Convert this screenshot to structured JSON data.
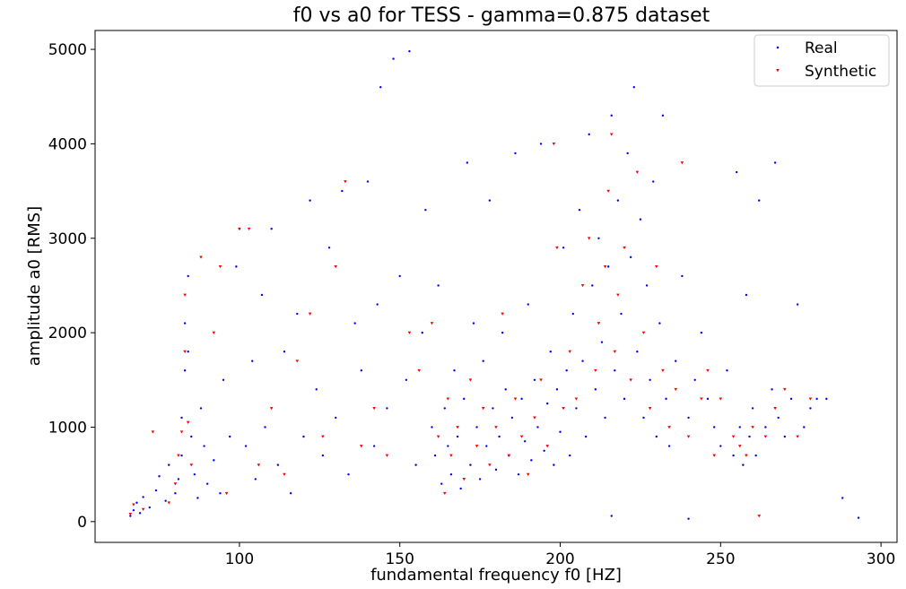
{
  "chart_data": {
    "type": "scatter",
    "title": "f0 vs a0 for TESS - gamma=0.875 dataset",
    "xlabel": "fundamental frequency f0 [HZ]",
    "ylabel": "amplitude a0 [RMS]",
    "xlim": [
      55,
      305
    ],
    "ylim": [
      -220,
      5200
    ],
    "xticks": [
      100,
      150,
      200,
      250,
      300
    ],
    "yticks": [
      0,
      1000,
      2000,
      3000,
      4000,
      5000
    ],
    "grid": false,
    "legend_position": "top-right",
    "colors": {
      "Real": "#0000ff",
      "Synthetic": "#ff0000"
    },
    "series": [
      {
        "name": "Real",
        "marker": "point",
        "points": [
          [
            66,
            60
          ],
          [
            67,
            120
          ],
          [
            68,
            200
          ],
          [
            69,
            90
          ],
          [
            70,
            260
          ],
          [
            72,
            150
          ],
          [
            74,
            330
          ],
          [
            75,
            480
          ],
          [
            77,
            220
          ],
          [
            78,
            600
          ],
          [
            80,
            300
          ],
          [
            81,
            450
          ],
          [
            82,
            700
          ],
          [
            82,
            1100
          ],
          [
            83,
            1600
          ],
          [
            83,
            2100
          ],
          [
            84,
            2600
          ],
          [
            84,
            1800
          ],
          [
            85,
            900
          ],
          [
            86,
            500
          ],
          [
            87,
            250
          ],
          [
            88,
            1200
          ],
          [
            89,
            800
          ],
          [
            90,
            400
          ],
          [
            92,
            650
          ],
          [
            94,
            300
          ],
          [
            95,
            1500
          ],
          [
            97,
            900
          ],
          [
            99,
            2700
          ],
          [
            100,
            3100
          ],
          [
            102,
            800
          ],
          [
            104,
            1700
          ],
          [
            105,
            450
          ],
          [
            107,
            2400
          ],
          [
            108,
            1000
          ],
          [
            110,
            3100
          ],
          [
            112,
            600
          ],
          [
            114,
            1800
          ],
          [
            116,
            300
          ],
          [
            118,
            2200
          ],
          [
            120,
            900
          ],
          [
            122,
            3400
          ],
          [
            124,
            1400
          ],
          [
            126,
            700
          ],
          [
            128,
            2900
          ],
          [
            130,
            1100
          ],
          [
            132,
            3500
          ],
          [
            134,
            500
          ],
          [
            136,
            2100
          ],
          [
            138,
            1600
          ],
          [
            140,
            3600
          ],
          [
            142,
            800
          ],
          [
            143,
            2300
          ],
          [
            144,
            4600
          ],
          [
            146,
            1200
          ],
          [
            148,
            4900
          ],
          [
            150,
            2600
          ],
          [
            152,
            1500
          ],
          [
            153,
            4980
          ],
          [
            155,
            600
          ],
          [
            157,
            2000
          ],
          [
            158,
            3300
          ],
          [
            160,
            1000
          ],
          [
            161,
            700
          ],
          [
            162,
            2500
          ],
          [
            163,
            400
          ],
          [
            164,
            1200
          ],
          [
            165,
            800
          ],
          [
            166,
            500
          ],
          [
            167,
            1600
          ],
          [
            168,
            900
          ],
          [
            169,
            350
          ],
          [
            170,
            1300
          ],
          [
            171,
            3800
          ],
          [
            172,
            600
          ],
          [
            173,
            2100
          ],
          [
            174,
            1000
          ],
          [
            175,
            450
          ],
          [
            176,
            1700
          ],
          [
            177,
            800
          ],
          [
            178,
            3400
          ],
          [
            179,
            1200
          ],
          [
            180,
            550
          ],
          [
            181,
            900
          ],
          [
            182,
            2000
          ],
          [
            183,
            1400
          ],
          [
            184,
            700
          ],
          [
            185,
            1100
          ],
          [
            186,
            3900
          ],
          [
            187,
            500
          ],
          [
            188,
            1300
          ],
          [
            189,
            850
          ],
          [
            190,
            2300
          ],
          [
            191,
            650
          ],
          [
            192,
            1500
          ],
          [
            193,
            1000
          ],
          [
            194,
            4000
          ],
          [
            195,
            750
          ],
          [
            196,
            1250
          ],
          [
            197,
            1800
          ],
          [
            198,
            600
          ],
          [
            199,
            1400
          ],
          [
            200,
            950
          ],
          [
            201,
            2900
          ],
          [
            202,
            1600
          ],
          [
            203,
            700
          ],
          [
            204,
            2200
          ],
          [
            205,
            1200
          ],
          [
            206,
            3300
          ],
          [
            207,
            1700
          ],
          [
            208,
            900
          ],
          [
            209,
            4100
          ],
          [
            210,
            2500
          ],
          [
            211,
            1400
          ],
          [
            212,
            3000
          ],
          [
            213,
            1900
          ],
          [
            214,
            1100
          ],
          [
            215,
            2700
          ],
          [
            216,
            4300
          ],
          [
            217,
            1600
          ],
          [
            218,
            3400
          ],
          [
            219,
            2200
          ],
          [
            220,
            1300
          ],
          [
            221,
            3900
          ],
          [
            222,
            2800
          ],
          [
            223,
            4600
          ],
          [
            224,
            1800
          ],
          [
            225,
            3200
          ],
          [
            226,
            1100
          ],
          [
            227,
            2500
          ],
          [
            228,
            1500
          ],
          [
            229,
            3600
          ],
          [
            230,
            900
          ],
          [
            231,
            2100
          ],
          [
            232,
            4300
          ],
          [
            233,
            1300
          ],
          [
            234,
            800
          ],
          [
            236,
            1700
          ],
          [
            238,
            2600
          ],
          [
            240,
            1100
          ],
          [
            242,
            1500
          ],
          [
            244,
            2000
          ],
          [
            246,
            1300
          ],
          [
            248,
            1000
          ],
          [
            250,
            800
          ],
          [
            252,
            1600
          ],
          [
            254,
            700
          ],
          [
            255,
            3700
          ],
          [
            256,
            1000
          ],
          [
            257,
            600
          ],
          [
            258,
            2400
          ],
          [
            259,
            900
          ],
          [
            260,
            1200
          ],
          [
            261,
            700
          ],
          [
            262,
            3400
          ],
          [
            264,
            1000
          ],
          [
            266,
            1400
          ],
          [
            267,
            3800
          ],
          [
            268,
            1100
          ],
          [
            270,
            900
          ],
          [
            272,
            1300
          ],
          [
            274,
            2300
          ],
          [
            276,
            1000
          ],
          [
            278,
            1200
          ],
          [
            280,
            1300
          ],
          [
            283,
            1300
          ],
          [
            288,
            250
          ],
          [
            293,
            40
          ],
          [
            240,
            30
          ],
          [
            216,
            60
          ]
        ]
      },
      {
        "name": "Synthetic",
        "marker": "triangle",
        "points": [
          [
            66,
            80
          ],
          [
            67,
            180
          ],
          [
            70,
            130
          ],
          [
            73,
            950
          ],
          [
            78,
            200
          ],
          [
            80,
            400
          ],
          [
            81,
            700
          ],
          [
            82,
            950
          ],
          [
            83,
            1800
          ],
          [
            83,
            2400
          ],
          [
            84,
            1050
          ],
          [
            85,
            600
          ],
          [
            88,
            2800
          ],
          [
            92,
            2000
          ],
          [
            94,
            2700
          ],
          [
            96,
            300
          ],
          [
            100,
            3100
          ],
          [
            103,
            3100
          ],
          [
            106,
            600
          ],
          [
            110,
            1200
          ],
          [
            114,
            500
          ],
          [
            118,
            1700
          ],
          [
            122,
            2200
          ],
          [
            126,
            900
          ],
          [
            130,
            2700
          ],
          [
            133,
            3600
          ],
          [
            138,
            800
          ],
          [
            142,
            1200
          ],
          [
            146,
            700
          ],
          [
            153,
            2000
          ],
          [
            156,
            1600
          ],
          [
            160,
            2100
          ],
          [
            162,
            900
          ],
          [
            164,
            300
          ],
          [
            165,
            1300
          ],
          [
            166,
            700
          ],
          [
            168,
            1000
          ],
          [
            170,
            450
          ],
          [
            172,
            1500
          ],
          [
            174,
            800
          ],
          [
            176,
            1200
          ],
          [
            178,
            600
          ],
          [
            180,
            1000
          ],
          [
            182,
            2200
          ],
          [
            184,
            700
          ],
          [
            186,
            1300
          ],
          [
            188,
            900
          ],
          [
            190,
            500
          ],
          [
            192,
            1100
          ],
          [
            194,
            1500
          ],
          [
            196,
            800
          ],
          [
            198,
            4000
          ],
          [
            199,
            2900
          ],
          [
            201,
            1200
          ],
          [
            203,
            1800
          ],
          [
            205,
            1300
          ],
          [
            207,
            2500
          ],
          [
            209,
            3000
          ],
          [
            211,
            1600
          ],
          [
            212,
            2100
          ],
          [
            214,
            2700
          ],
          [
            215,
            3500
          ],
          [
            216,
            4100
          ],
          [
            217,
            1800
          ],
          [
            218,
            2400
          ],
          [
            220,
            2900
          ],
          [
            222,
            1500
          ],
          [
            224,
            3700
          ],
          [
            226,
            2000
          ],
          [
            228,
            1200
          ],
          [
            230,
            2700
          ],
          [
            232,
            1600
          ],
          [
            234,
            1000
          ],
          [
            236,
            1400
          ],
          [
            238,
            3800
          ],
          [
            240,
            900
          ],
          [
            244,
            1300
          ],
          [
            246,
            1600
          ],
          [
            248,
            700
          ],
          [
            250,
            1300
          ],
          [
            254,
            900
          ],
          [
            256,
            800
          ],
          [
            258,
            700
          ],
          [
            260,
            1000
          ],
          [
            262,
            60
          ],
          [
            264,
            900
          ],
          [
            267,
            1200
          ],
          [
            270,
            1400
          ],
          [
            274,
            900
          ],
          [
            278,
            1300
          ]
        ]
      }
    ]
  }
}
